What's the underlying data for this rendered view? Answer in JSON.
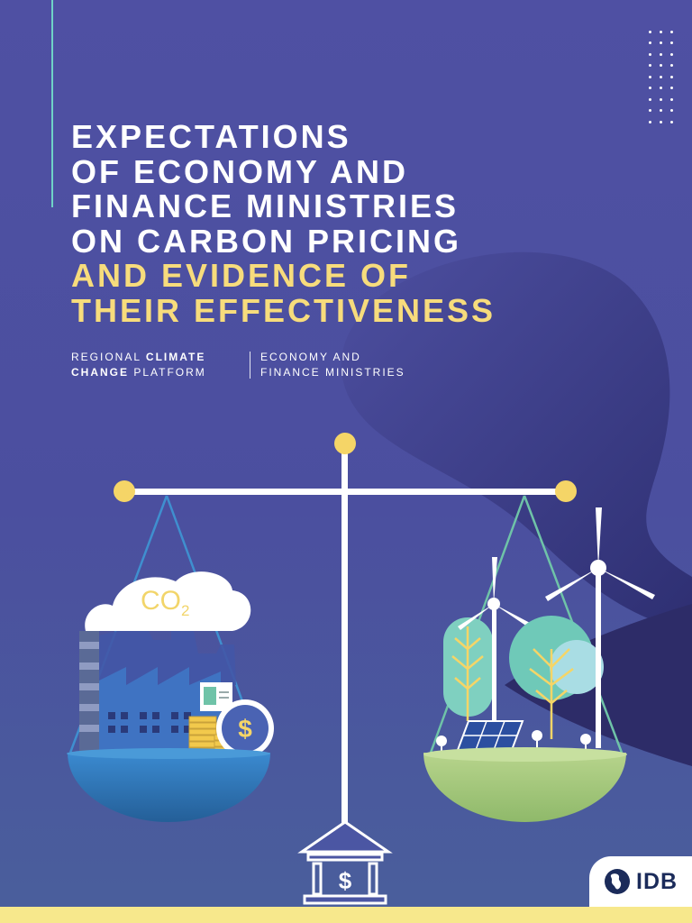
{
  "title": {
    "lines_white": [
      "EXPECTATIONS",
      "OF ECONOMY AND",
      "FINANCE MINISTRIES",
      "ON CARBON PRICING"
    ],
    "lines_yellow": [
      "AND EVIDENCE OF",
      "THEIR EFFECTIVENESS"
    ]
  },
  "platform": {
    "line1_a": "REGIONAL ",
    "line1_b": "CLIMATE",
    "line2_a": "CHANGE",
    "line2_b": " PLATFORM",
    "section_line1": "ECONOMY AND",
    "section_line2": "FINANCE MINISTRIES"
  },
  "illustration": {
    "co2_text": "CO",
    "co2_sub": "2",
    "dollar_symbol": "$"
  },
  "logo": {
    "text": "IDB"
  },
  "colors": {
    "background": "#4f50a3",
    "accent_yellow": "#f7dc7c",
    "teal": "#6fd3c7",
    "green_bowl": "#a7c97a",
    "blue_bowl": "#2f73b4"
  },
  "icons": [
    "dots-pattern-icon",
    "balance-scale-icon",
    "co2-cloud-icon",
    "factory-icon",
    "dollar-coin-icon",
    "wind-turbine-icon",
    "tree-icon",
    "solar-panel-icon",
    "bank-icon",
    "globe-icon"
  ]
}
